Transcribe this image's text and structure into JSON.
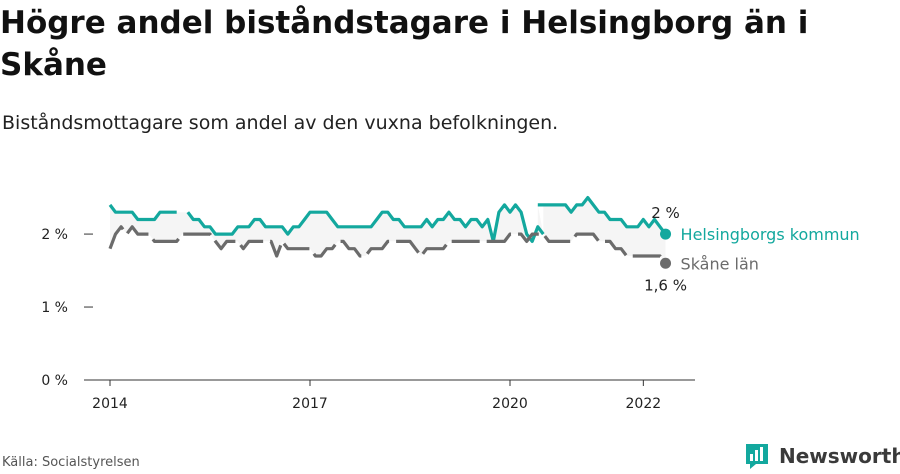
{
  "header": {
    "title": "Högre andel biståndstagare i Helsingborg än i Skåne",
    "subtitle": "Biståndsmottagare som andel av den vuxna befolkningen."
  },
  "footer": {
    "source": "Källa: Socialstyrelsen",
    "brand_name": "Newsworthy"
  },
  "colors": {
    "helsingborg": "#13a89e",
    "skane": "#6b6b6b",
    "band": "#ededed",
    "axis": "#333333",
    "brand_icon": "#13a89e"
  },
  "chart_data": {
    "type": "line",
    "title": "Högre andel biståndstagare i Helsingborg än i Skåne",
    "subtitle": "Biståndsmottagare som andel av den vuxna befolkningen.",
    "x_unit": "year (decimal, monthly observations)",
    "y_unit": "percent",
    "ylim": [
      0,
      2.7
    ],
    "xlim": [
      2014,
      2022.7
    ],
    "y_ticks": [
      0,
      1,
      2
    ],
    "y_tick_labels": [
      "0 %",
      "1 %",
      "2 %"
    ],
    "x_ticks": [
      2014,
      2017,
      2020,
      2022
    ],
    "x_tick_labels": [
      "2014",
      "2017",
      "2020",
      "2022"
    ],
    "grid": false,
    "series": [
      {
        "name": "Helsingborgs kommun",
        "style": "solid",
        "end_label": "2 %",
        "segments": [
          [
            [
              2014.0,
              2.4
            ],
            [
              2014.083,
              2.3
            ],
            [
              2014.167,
              2.3
            ],
            [
              2014.25,
              2.3
            ],
            [
              2014.333,
              2.3
            ],
            [
              2014.417,
              2.2
            ],
            [
              2014.5,
              2.2
            ],
            [
              2014.583,
              2.2
            ],
            [
              2014.667,
              2.2
            ],
            [
              2014.75,
              2.3
            ],
            [
              2014.833,
              2.3
            ],
            [
              2014.917,
              2.3
            ],
            [
              2015.0,
              2.3
            ]
          ],
          [
            [
              2015.167,
              2.3
            ],
            [
              2015.25,
              2.2
            ],
            [
              2015.333,
              2.2
            ],
            [
              2015.417,
              2.1
            ],
            [
              2015.5,
              2.1
            ],
            [
              2015.583,
              2.0
            ],
            [
              2015.667,
              2.0
            ],
            [
              2015.75,
              2.0
            ],
            [
              2015.833,
              2.0
            ],
            [
              2015.917,
              2.1
            ],
            [
              2016.0,
              2.1
            ],
            [
              2016.083,
              2.1
            ],
            [
              2016.167,
              2.2
            ],
            [
              2016.25,
              2.2
            ],
            [
              2016.333,
              2.1
            ],
            [
              2016.417,
              2.1
            ],
            [
              2016.5,
              2.1
            ],
            [
              2016.583,
              2.1
            ],
            [
              2016.667,
              2.0
            ],
            [
              2016.75,
              2.1
            ],
            [
              2016.833,
              2.1
            ],
            [
              2016.917,
              2.2
            ],
            [
              2017.0,
              2.3
            ],
            [
              2017.083,
              2.3
            ],
            [
              2017.167,
              2.3
            ],
            [
              2017.25,
              2.3
            ],
            [
              2017.333,
              2.2
            ],
            [
              2017.417,
              2.1
            ],
            [
              2017.5,
              2.1
            ],
            [
              2017.583,
              2.1
            ],
            [
              2017.667,
              2.1
            ],
            [
              2017.75,
              2.1
            ],
            [
              2017.833,
              2.1
            ],
            [
              2017.917,
              2.1
            ],
            [
              2018.0,
              2.2
            ],
            [
              2018.083,
              2.3
            ],
            [
              2018.167,
              2.3
            ],
            [
              2018.25,
              2.2
            ],
            [
              2018.333,
              2.2
            ],
            [
              2018.417,
              2.1
            ],
            [
              2018.5,
              2.1
            ],
            [
              2018.583,
              2.1
            ],
            [
              2018.667,
              2.1
            ],
            [
              2018.75,
              2.2
            ],
            [
              2018.833,
              2.1
            ],
            [
              2018.917,
              2.2
            ],
            [
              2019.0,
              2.2
            ],
            [
              2019.083,
              2.3
            ],
            [
              2019.167,
              2.2
            ],
            [
              2019.25,
              2.2
            ],
            [
              2019.333,
              2.1
            ],
            [
              2019.417,
              2.2
            ],
            [
              2019.5,
              2.2
            ],
            [
              2019.583,
              2.1
            ],
            [
              2019.667,
              2.2
            ],
            [
              2019.75,
              1.9
            ],
            [
              2019.833,
              2.3
            ],
            [
              2019.917,
              2.4
            ],
            [
              2020.0,
              2.3
            ],
            [
              2020.083,
              2.4
            ],
            [
              2020.167,
              2.3
            ],
            [
              2020.25,
              2.0
            ],
            [
              2020.333,
              1.9
            ],
            [
              2020.417,
              2.1
            ],
            [
              2020.5,
              2.0
            ]
          ],
          [
            [
              2020.417,
              2.4
            ],
            [
              2020.5,
              2.4
            ],
            [
              2020.583,
              2.4
            ],
            [
              2020.667,
              2.4
            ],
            [
              2020.75,
              2.4
            ],
            [
              2020.833,
              2.4
            ],
            [
              2020.917,
              2.3
            ],
            [
              2021.0,
              2.4
            ],
            [
              2021.083,
              2.4
            ],
            [
              2021.167,
              2.5
            ],
            [
              2021.25,
              2.4
            ],
            [
              2021.333,
              2.3
            ],
            [
              2021.417,
              2.3
            ],
            [
              2021.5,
              2.2
            ],
            [
              2021.583,
              2.2
            ],
            [
              2021.667,
              2.2
            ],
            [
              2021.75,
              2.1
            ],
            [
              2021.833,
              2.1
            ],
            [
              2021.917,
              2.1
            ],
            [
              2022.0,
              2.2
            ],
            [
              2022.083,
              2.1
            ],
            [
              2022.167,
              2.2
            ],
            [
              2022.25,
              2.1
            ],
            [
              2022.333,
              2.0
            ]
          ]
        ]
      },
      {
        "name": "Skåne län",
        "style": "dashed",
        "end_label": "1,6 %",
        "segments": [
          [
            [
              2014.0,
              1.8
            ],
            [
              2014.083,
              2.0
            ],
            [
              2014.167,
              2.1
            ],
            [
              2014.25,
              2.0
            ],
            [
              2014.333,
              2.1
            ],
            [
              2014.417,
              2.0
            ],
            [
              2014.5,
              2.0
            ],
            [
              2014.583,
              2.0
            ],
            [
              2014.667,
              1.9
            ],
            [
              2014.75,
              1.9
            ],
            [
              2014.833,
              1.9
            ],
            [
              2014.917,
              1.9
            ],
            [
              2015.0,
              1.9
            ],
            [
              2015.083,
              2.0
            ],
            [
              2015.167,
              2.0
            ],
            [
              2015.25,
              2.0
            ],
            [
              2015.333,
              2.0
            ],
            [
              2015.417,
              2.0
            ],
            [
              2015.5,
              2.0
            ],
            [
              2015.583,
              1.9
            ],
            [
              2015.667,
              1.8
            ],
            [
              2015.75,
              1.9
            ],
            [
              2015.833,
              1.9
            ],
            [
              2015.917,
              1.9
            ],
            [
              2016.0,
              1.8
            ],
            [
              2016.083,
              1.9
            ],
            [
              2016.167,
              1.9
            ],
            [
              2016.25,
              1.9
            ],
            [
              2016.333,
              1.9
            ],
            [
              2016.417,
              1.9
            ],
            [
              2016.5,
              1.7
            ],
            [
              2016.583,
              1.9
            ],
            [
              2016.667,
              1.8
            ],
            [
              2016.75,
              1.8
            ],
            [
              2016.833,
              1.8
            ],
            [
              2016.917,
              1.8
            ],
            [
              2017.0,
              1.8
            ],
            [
              2017.083,
              1.7
            ],
            [
              2017.167,
              1.7
            ],
            [
              2017.25,
              1.8
            ],
            [
              2017.333,
              1.8
            ],
            [
              2017.417,
              1.9
            ],
            [
              2017.5,
              1.9
            ],
            [
              2017.583,
              1.8
            ],
            [
              2017.667,
              1.8
            ],
            [
              2017.75,
              1.7
            ],
            [
              2017.833,
              1.7
            ],
            [
              2017.917,
              1.8
            ],
            [
              2018.0,
              1.8
            ],
            [
              2018.083,
              1.8
            ],
            [
              2018.167,
              1.9
            ],
            [
              2018.25,
              1.9
            ],
            [
              2018.333,
              1.9
            ],
            [
              2018.417,
              1.9
            ],
            [
              2018.5,
              1.9
            ],
            [
              2018.583,
              1.8
            ],
            [
              2018.667,
              1.7
            ],
            [
              2018.75,
              1.8
            ],
            [
              2018.833,
              1.8
            ],
            [
              2018.917,
              1.8
            ],
            [
              2019.0,
              1.8
            ],
            [
              2019.083,
              1.9
            ],
            [
              2019.167,
              1.9
            ],
            [
              2019.25,
              1.9
            ],
            [
              2019.333,
              1.9
            ],
            [
              2019.417,
              1.9
            ],
            [
              2019.5,
              1.9
            ],
            [
              2019.583,
              1.9
            ],
            [
              2019.667,
              1.9
            ],
            [
              2019.75,
              1.9
            ],
            [
              2019.833,
              1.9
            ],
            [
              2019.917,
              1.9
            ],
            [
              2020.0,
              2.0
            ],
            [
              2020.083,
              2.0
            ],
            [
              2020.167,
              2.0
            ],
            [
              2020.25,
              1.9
            ],
            [
              2020.333,
              2.0
            ],
            [
              2020.417,
              2.0
            ],
            [
              2020.5,
              2.0
            ],
            [
              2020.583,
              1.9
            ],
            [
              2020.667,
              1.9
            ],
            [
              2020.75,
              1.9
            ],
            [
              2020.833,
              1.9
            ],
            [
              2020.917,
              1.9
            ],
            [
              2021.0,
              2.0
            ],
            [
              2021.083,
              2.0
            ],
            [
              2021.167,
              2.0
            ],
            [
              2021.25,
              2.0
            ],
            [
              2021.333,
              1.9
            ],
            [
              2021.417,
              1.9
            ],
            [
              2021.5,
              1.9
            ],
            [
              2021.583,
              1.8
            ],
            [
              2021.667,
              1.8
            ],
            [
              2021.75,
              1.7
            ],
            [
              2021.833,
              1.7
            ],
            [
              2021.917,
              1.7
            ],
            [
              2022.0,
              1.7
            ],
            [
              2022.083,
              1.7
            ],
            [
              2022.167,
              1.7
            ],
            [
              2022.25,
              1.7
            ],
            [
              2022.333,
              1.6
            ]
          ]
        ]
      }
    ]
  }
}
